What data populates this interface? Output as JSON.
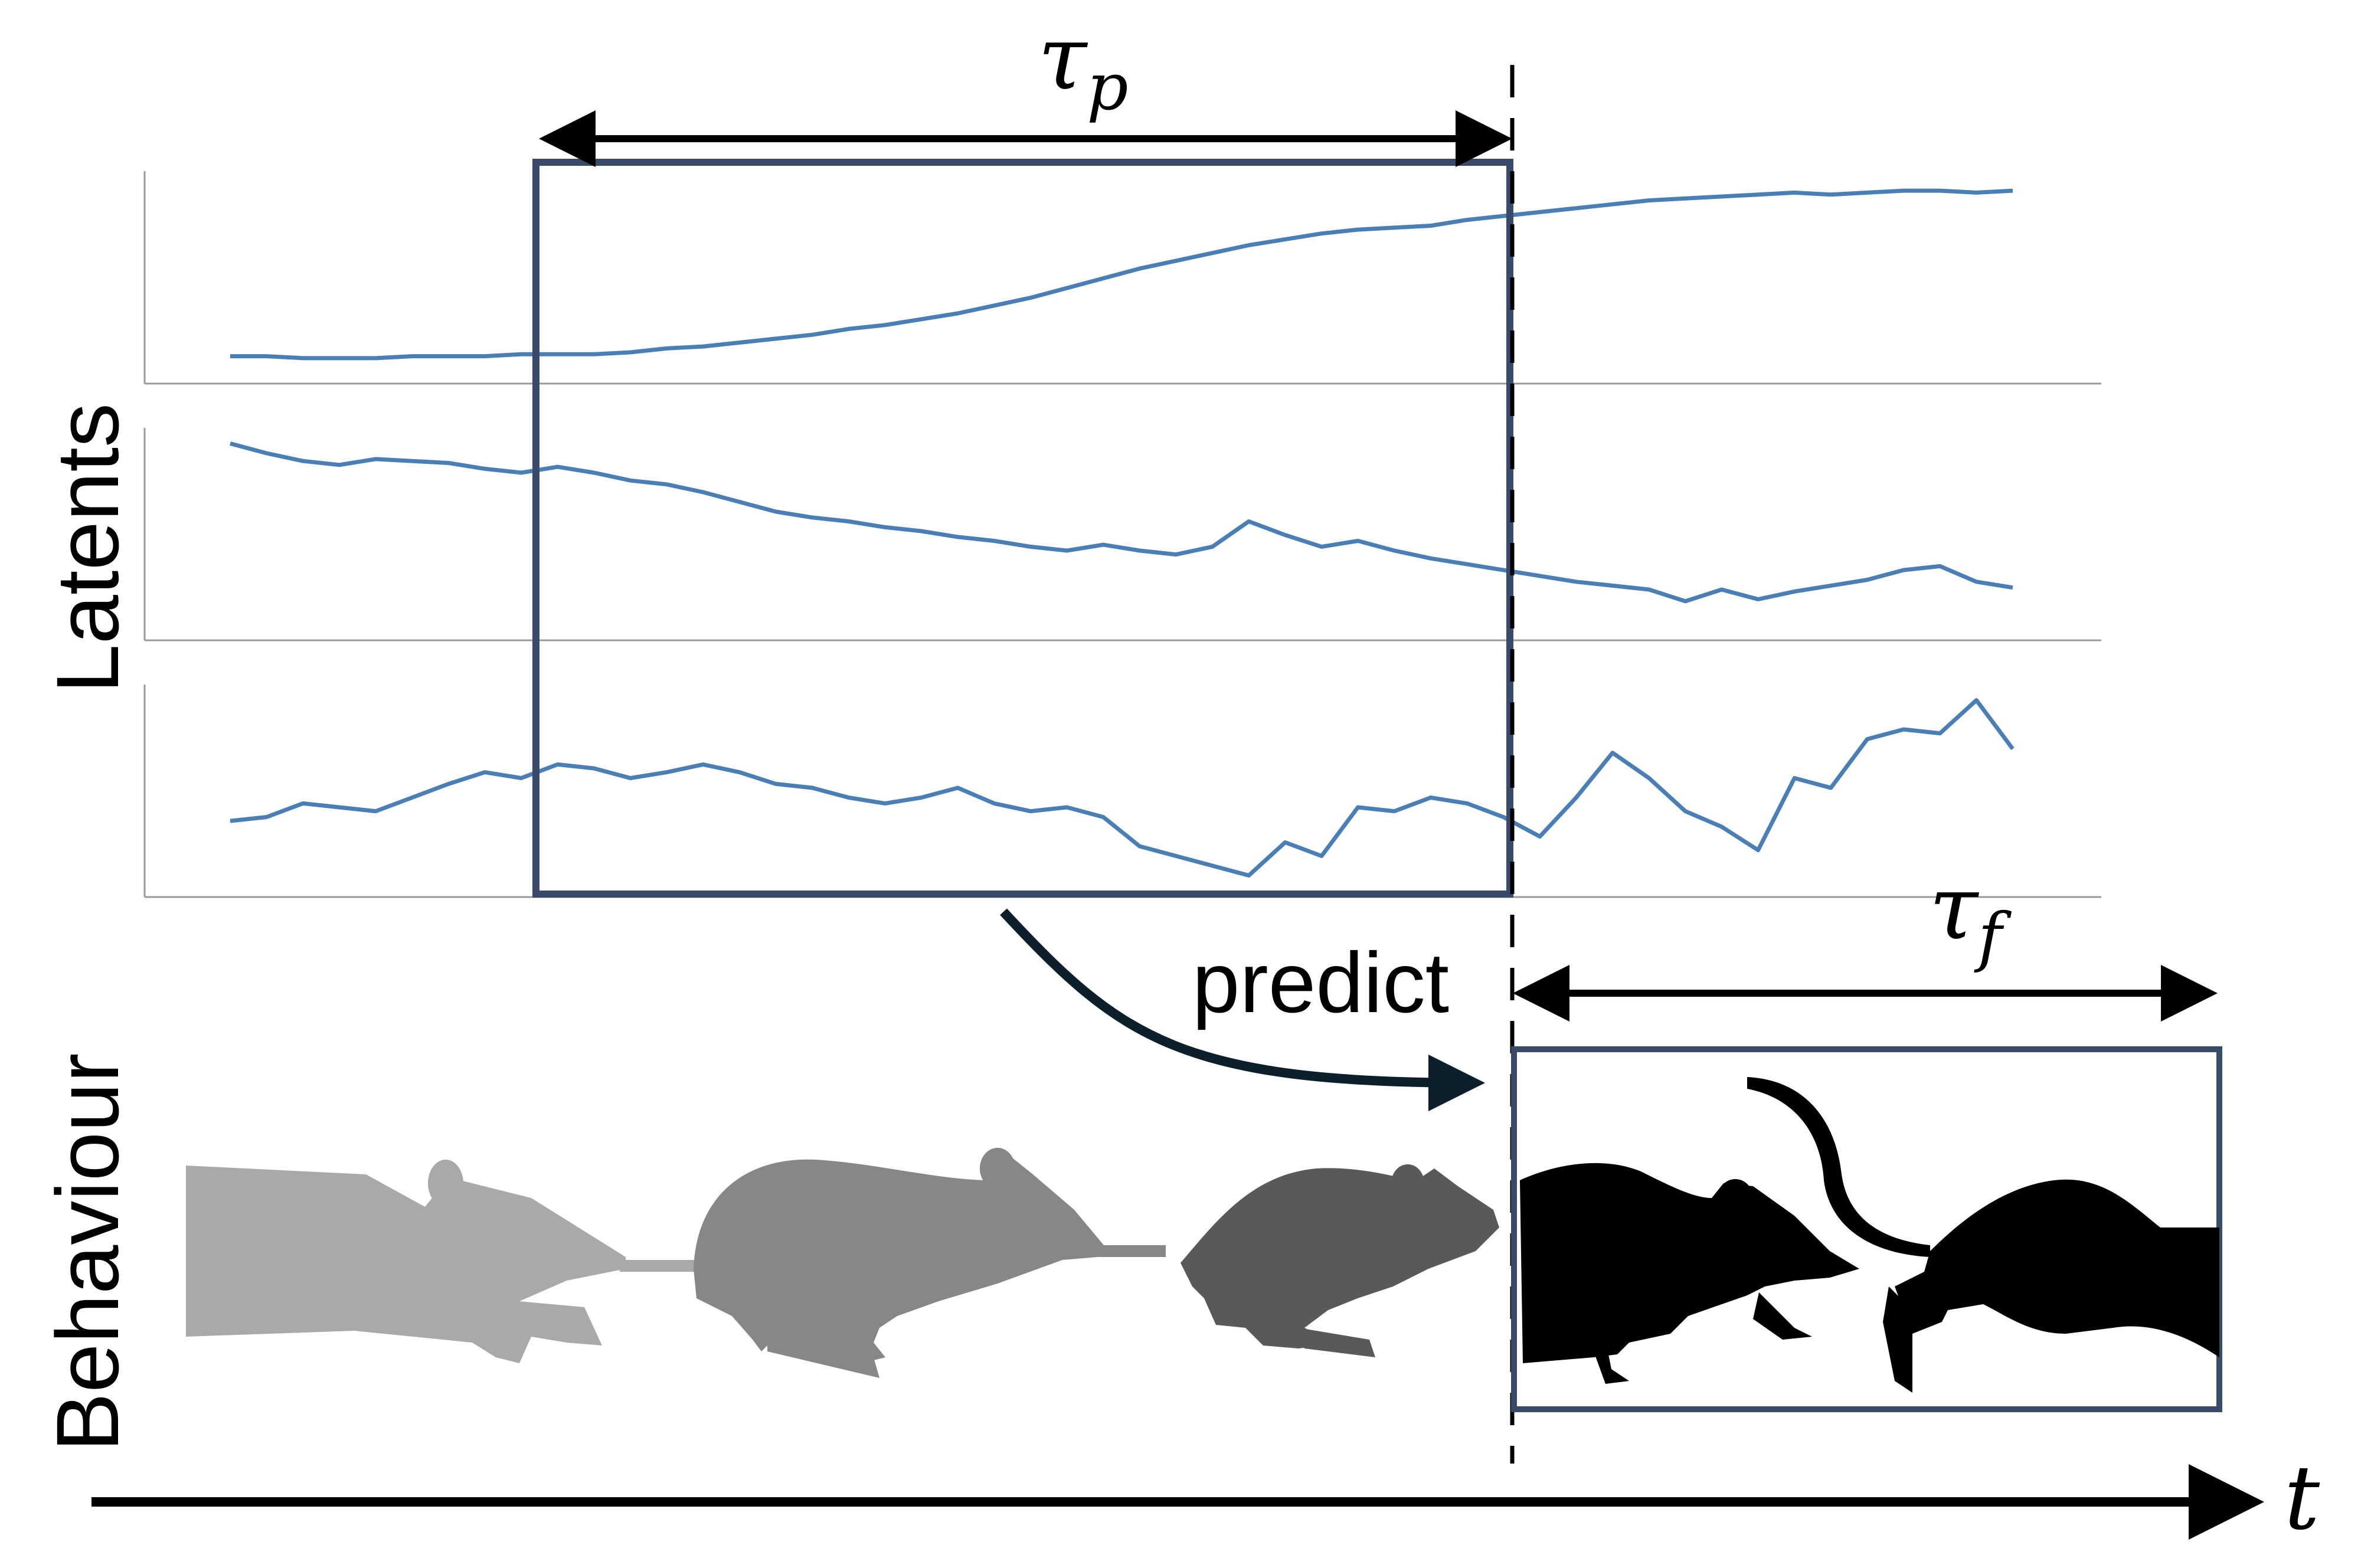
{
  "labels": {
    "y_latents": "Latents",
    "y_behaviour": "Behaviour",
    "tau_p": "τ",
    "tau_p_sub": "p",
    "tau_f": "τ",
    "tau_f_sub": "f",
    "predict": "predict",
    "time": "t"
  },
  "colors": {
    "trace": "#4a7fb5",
    "box": "#3a4a6b",
    "arrow": "#000000",
    "predict_arrow": "#0d1f2b",
    "axis": "#9a9a9a",
    "mouse_past_1": "#a9a9a9",
    "mouse_past_2": "#878787",
    "mouse_past_3": "#595959",
    "mouse_future": "#000000"
  },
  "latents": [
    {
      "name": "",
      "values": [
        0.08,
        0.08,
        0.07,
        0.07,
        0.07,
        0.08,
        0.08,
        0.08,
        0.09,
        0.09,
        0.09,
        0.1,
        0.12,
        0.13,
        0.15,
        0.17,
        0.19,
        0.22,
        0.24,
        0.27,
        0.3,
        0.34,
        0.38,
        0.43,
        0.48,
        0.53,
        0.57,
        0.61,
        0.65,
        0.68,
        0.71,
        0.73,
        0.74,
        0.75,
        0.78,
        0.8,
        0.82,
        0.84,
        0.86,
        0.88,
        0.89,
        0.9,
        0.91,
        0.92,
        0.91,
        0.92,
        0.93,
        0.93,
        0.92,
        0.93
      ]
    },
    {
      "name": "",
      "values": [
        0.95,
        0.9,
        0.86,
        0.84,
        0.87,
        0.86,
        0.85,
        0.82,
        0.8,
        0.83,
        0.8,
        0.76,
        0.74,
        0.7,
        0.65,
        0.6,
        0.57,
        0.55,
        0.52,
        0.5,
        0.47,
        0.45,
        0.42,
        0.4,
        0.43,
        0.4,
        0.38,
        0.42,
        0.55,
        0.48,
        0.42,
        0.45,
        0.4,
        0.36,
        0.33,
        0.3,
        0.27,
        0.24,
        0.22,
        0.2,
        0.14,
        0.2,
        0.15,
        0.19,
        0.22,
        0.25,
        0.3,
        0.32,
        0.24,
        0.21
      ]
    },
    {
      "name": "",
      "values": [
        0.33,
        0.35,
        0.42,
        0.4,
        0.38,
        0.45,
        0.52,
        0.58,
        0.55,
        0.62,
        0.6,
        0.55,
        0.58,
        0.62,
        0.58,
        0.52,
        0.5,
        0.45,
        0.42,
        0.45,
        0.5,
        0.42,
        0.38,
        0.4,
        0.35,
        0.2,
        0.15,
        0.1,
        0.05,
        0.22,
        0.15,
        0.4,
        0.38,
        0.45,
        0.42,
        0.35,
        0.25,
        0.45,
        0.68,
        0.55,
        0.38,
        0.3,
        0.18,
        0.55,
        0.5,
        0.75,
        0.8,
        0.78,
        0.95,
        0.7
      ]
    }
  ]
}
